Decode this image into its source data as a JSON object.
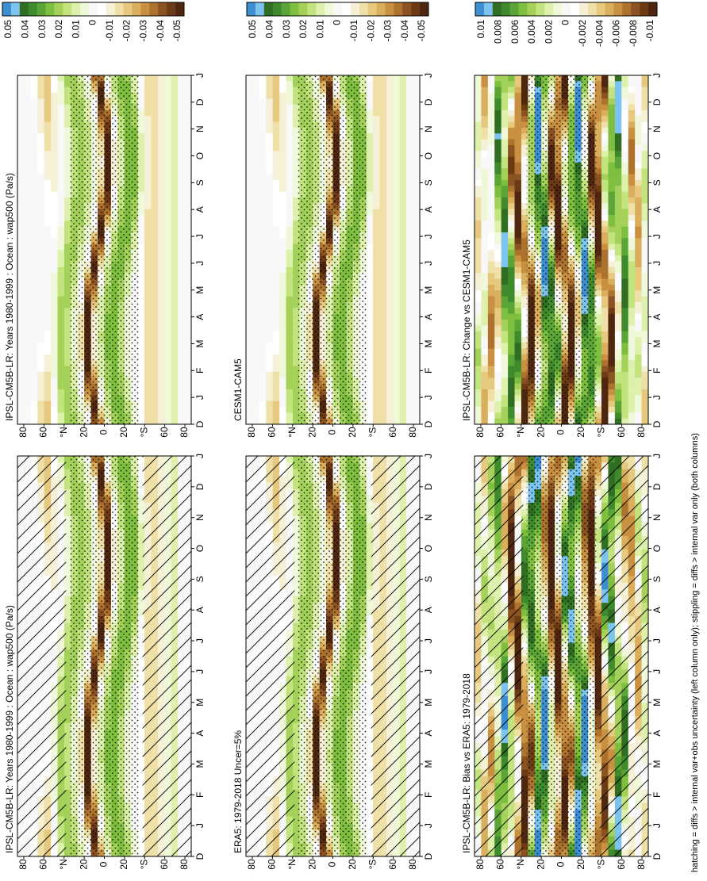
{
  "footnote": "hatching = diffs > internal var+obs uncertainty (left column only); stippling = diffs > internal var only (both columns)",
  "colors": {
    "scale": [
      "#3d8fd1",
      "#7cc3ef",
      "#2f6e23",
      "#3e8a2c",
      "#5ba536",
      "#7fbf3f",
      "#a3d15a",
      "#c3e37f",
      "#def1ac",
      "#f0f8da",
      "#f8f8f8",
      "#ffffff",
      "#f6f0d6",
      "#efe0a8",
      "#e6c97f",
      "#d9ae5c",
      "#c89040",
      "#ad722e",
      "#8c5322",
      "#6d3a16",
      "#4f2610"
    ]
  },
  "chart_data": [
    {
      "id": "p1",
      "type": "heatmap",
      "title": "IPSL-CM5B-LR: Years 1980-1999 : Ocean : wap500 (Pa/s)",
      "x_ticks": [
        "D",
        "J",
        "F",
        "M",
        "A",
        "M",
        "J",
        "J",
        "A",
        "S",
        "O",
        "N",
        "D",
        "J"
      ],
      "y_ticks": [
        "80",
        "60",
        "°N",
        "20",
        "0",
        "20",
        "°S",
        "60",
        "80"
      ],
      "colorbar_labels": [
        "0.05",
        "0.04",
        "0.03",
        "0.02",
        "0.01",
        "0",
        "-0.01",
        "-0.02",
        "-0.03",
        "-0.04",
        "-0.05"
      ],
      "hatching": true,
      "stippling": true,
      "scale_max": 0.05
    },
    {
      "id": "p2",
      "type": "heatmap",
      "title": "IPSL-CM5B-LR: Years 1980-1999 : Ocean : wap500 (Pa/s)",
      "x_ticks": [
        "D",
        "J",
        "F",
        "M",
        "A",
        "M",
        "J",
        "J",
        "A",
        "S",
        "O",
        "N",
        "D",
        "J"
      ],
      "y_ticks": [
        "80",
        "60",
        "°N",
        "20",
        "0",
        "20",
        "°S",
        "60",
        "80"
      ],
      "colorbar_labels": [
        "0.05",
        "0.04",
        "0.03",
        "0.02",
        "0.01",
        "0",
        "-0.01",
        "-0.02",
        "-0.03",
        "-0.04",
        "-0.05"
      ],
      "hatching": false,
      "stippling": true,
      "scale_max": 0.05
    },
    {
      "id": "p3",
      "type": "heatmap",
      "title": "ERA5: 1979-2018 Uncer=5%",
      "x_ticks": [
        "D",
        "J",
        "F",
        "M",
        "A",
        "M",
        "J",
        "J",
        "A",
        "S",
        "O",
        "N",
        "D",
        "J"
      ],
      "y_ticks": [
        "80",
        "60",
        "°N",
        "20",
        "0",
        "20",
        "°S",
        "60",
        "80"
      ],
      "colorbar_labels": [
        "0.05",
        "0.04",
        "0.03",
        "0.02",
        "0.01",
        "0",
        "-0.01",
        "-0.02",
        "-0.03",
        "-0.04",
        "-0.05"
      ],
      "hatching": true,
      "stippling": true,
      "scale_max": 0.05
    },
    {
      "id": "p4",
      "type": "heatmap",
      "title": "CESM1-CAM5",
      "x_ticks": [
        "D",
        "J",
        "F",
        "M",
        "A",
        "M",
        "J",
        "J",
        "A",
        "S",
        "O",
        "N",
        "D",
        "J"
      ],
      "y_ticks": [
        "80",
        "60",
        "°N",
        "20",
        "0",
        "20",
        "°S",
        "60",
        "80"
      ],
      "colorbar_labels": [
        "0.05",
        "0.04",
        "0.03",
        "0.02",
        "0.01",
        "0",
        "-0.01",
        "-0.02",
        "-0.03",
        "-0.04",
        "-0.05"
      ],
      "hatching": false,
      "stippling": true,
      "scale_max": 0.05
    },
    {
      "id": "p5",
      "type": "heatmap",
      "title": "IPSL-CM5B-LR: Bias vs ERA5: 1979-2018",
      "x_ticks": [
        "D",
        "J",
        "F",
        "M",
        "A",
        "M",
        "J",
        "J",
        "A",
        "S",
        "O",
        "N",
        "D",
        "J"
      ],
      "y_ticks": [
        "80",
        "60",
        "°N",
        "20",
        "0",
        "20",
        "°S",
        "60",
        "80"
      ],
      "colorbar_labels": [
        "0.01",
        "0.008",
        "0.006",
        "0.004",
        "0.002",
        "0",
        "-0.002",
        "-0.004",
        "-0.006",
        "-0.008",
        "-0.01"
      ],
      "hatching": true,
      "stippling": true,
      "scale_max": 0.01
    },
    {
      "id": "p6",
      "type": "heatmap",
      "title": "IPSL-CM5B-LR: Change vs CESM1-CAM5",
      "x_ticks": [
        "D",
        "J",
        "F",
        "M",
        "A",
        "M",
        "J",
        "J",
        "A",
        "S",
        "O",
        "N",
        "D",
        "J"
      ],
      "y_ticks": [
        "80",
        "60",
        "°N",
        "20",
        "0",
        "20",
        "°S",
        "60",
        "80"
      ],
      "colorbar_labels": [
        "0.01",
        "0.008",
        "0.006",
        "0.004",
        "0.002",
        "0",
        "-0.002",
        "-0.004",
        "-0.006",
        "-0.008",
        "-0.01"
      ],
      "hatching": false,
      "stippling": true,
      "scale_max": 0.01
    }
  ]
}
